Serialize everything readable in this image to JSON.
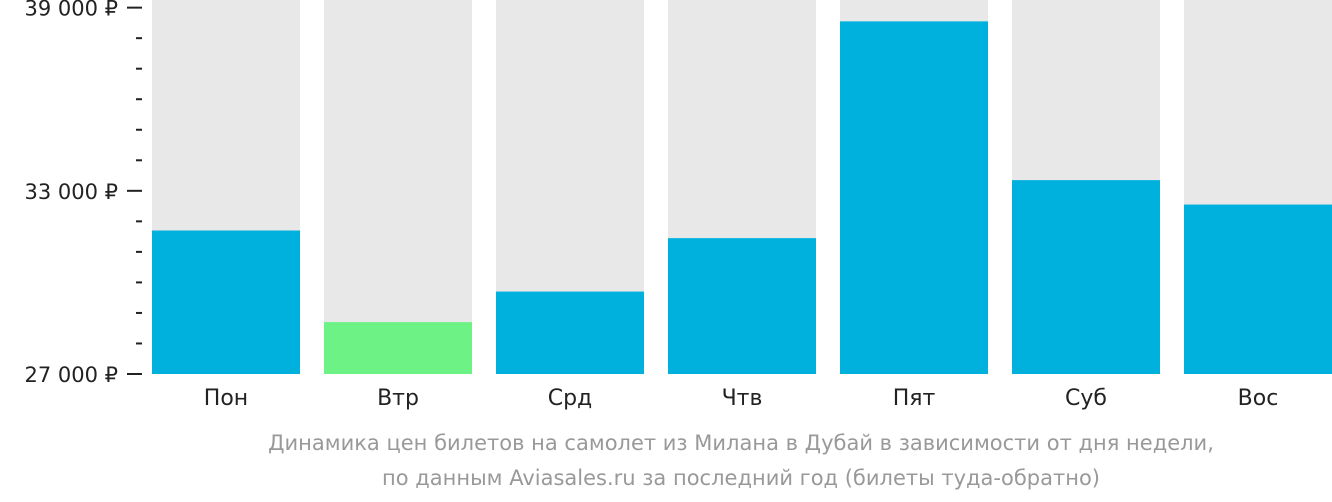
{
  "chart_data": {
    "type": "bar",
    "categories": [
      "Пон",
      "Втр",
      "Срд",
      "Чтв",
      "Пят",
      "Суб",
      "Вос"
    ],
    "values": [
      31700,
      28700,
      29700,
      31450,
      38550,
      33350,
      32550
    ],
    "ylim": [
      27000,
      39250
    ],
    "yticks": [
      {
        "value": 39000,
        "label": "39 000 ₽"
      },
      {
        "value": 33000,
        "label": "33 000 ₽"
      },
      {
        "value": 27000,
        "label": "27 000 ₽"
      }
    ],
    "minor_yticks": [
      38000,
      37000,
      36000,
      35000,
      34000,
      32000,
      31000,
      30000,
      29000,
      28000
    ],
    "highlight_index": 1,
    "colors": {
      "bar": "#00b0dd",
      "highlight": "#6cf285",
      "track": "#e8e8e8",
      "axis": "#222222"
    },
    "caption": [
      "Динамика цен билетов на самолет из Милана в Дубай в зависимости от дня недели,",
      "по данным Aviasales.ru за последний год (билеты туда-обратно)"
    ]
  }
}
